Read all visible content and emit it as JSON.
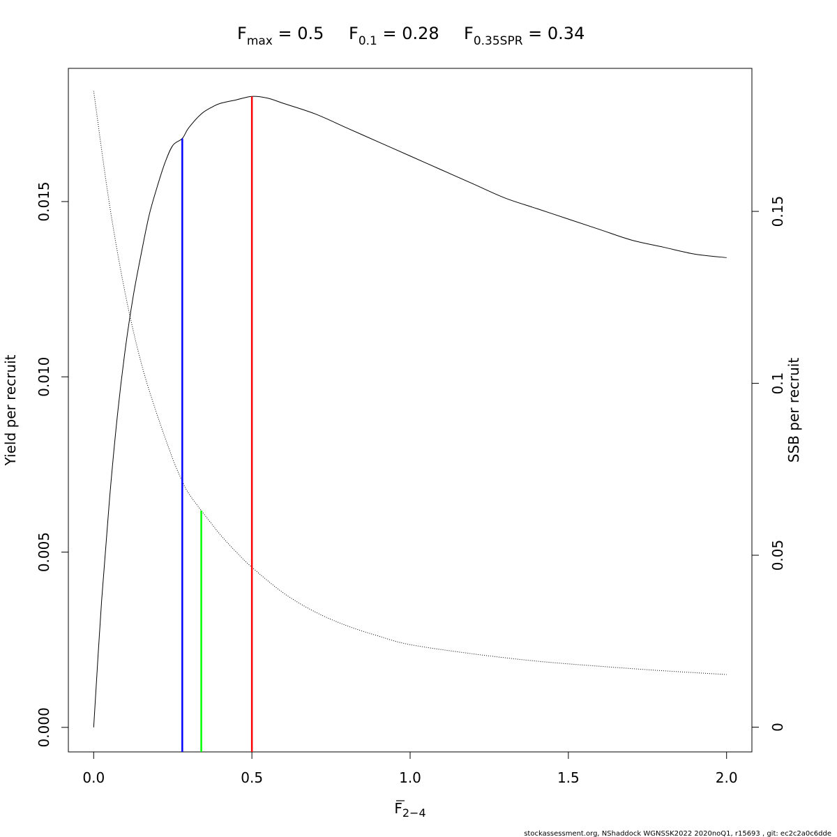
{
  "title": {
    "fmax": {
      "base": "F",
      "sub": "max",
      "rest": " = 0.5"
    },
    "f01": {
      "base": "F",
      "sub": "0.1",
      "rest": " = 0.28"
    },
    "fspr": {
      "base": "F",
      "sub": "0.35SPR",
      "rest": " = 0.34"
    }
  },
  "footer": "stockassessment.org, NShaddock  WGNSSK2022  2020noQ1, r15693 , git: ec2c2a0c6dde",
  "chart_data": {
    "type": "line",
    "xlabel": {
      "base": "F",
      "sub": "2−4"
    },
    "ylabel": "Yield per recruit",
    "y2label": "SSB per recruit",
    "xlim": [
      -0.08,
      2.08
    ],
    "ylim": [
      -0.0007,
      0.0188
    ],
    "y2lim": [
      -0.0072,
      0.1916
    ],
    "x_ticks": [
      0,
      0.5,
      1,
      1.5,
      2
    ],
    "x_tick_labels": [
      "0.0",
      "0.5",
      "1.0",
      "1.5",
      "2.0"
    ],
    "y_ticks": [
      0,
      0.005,
      0.01,
      0.015
    ],
    "y_tick_labels": [
      "0.000",
      "0.005",
      "0.010",
      "0.015"
    ],
    "y2_ticks": [
      0,
      0.05,
      0.1,
      0.15
    ],
    "y2_tick_labels": [
      "0",
      "0.05",
      "0.1",
      "0.15"
    ],
    "grid": false,
    "series": [
      {
        "axis": "left",
        "line_style": "solid",
        "color": "#000000",
        "x": [
          0,
          0.025,
          0.05,
          0.075,
          0.1,
          0.125,
          0.15,
          0.175,
          0.2,
          0.225,
          0.25,
          0.28,
          0.3,
          0.34,
          0.375,
          0.4,
          0.45,
          0.5,
          0.55,
          0.6,
          0.7,
          0.8,
          0.9,
          1.0,
          1.1,
          1.2,
          1.3,
          1.4,
          1.5,
          1.6,
          1.7,
          1.8,
          1.9,
          2.0
        ],
        "y": [
          0,
          0.0036,
          0.0065,
          0.0089,
          0.0108,
          0.0123,
          0.0135,
          0.0146,
          0.0154,
          0.0161,
          0.0166,
          0.0168,
          0.0171,
          0.0175,
          0.0177,
          0.0178,
          0.0179,
          0.018,
          0.01795,
          0.0178,
          0.0175,
          0.0171,
          0.0167,
          0.0163,
          0.0159,
          0.0155,
          0.0151,
          0.0148,
          0.0145,
          0.0142,
          0.0139,
          0.0137,
          0.0135,
          0.0134
        ]
      },
      {
        "axis": "right",
        "line_style": "dotted",
        "color": "#000000",
        "x": [
          0,
          0.05,
          0.1,
          0.15,
          0.2,
          0.25,
          0.28,
          0.3,
          0.34,
          0.4,
          0.45,
          0.5,
          0.6,
          0.7,
          0.8,
          0.9,
          1.0,
          1.2,
          1.4,
          1.6,
          1.8,
          2.0
        ],
        "y": [
          0.185,
          0.152,
          0.126,
          0.106,
          0.091,
          0.078,
          0.0715,
          0.068,
          0.063,
          0.056,
          0.051,
          0.0465,
          0.039,
          0.0335,
          0.0295,
          0.0265,
          0.024,
          0.0213,
          0.0192,
          0.0177,
          0.0164,
          0.0153
        ]
      }
    ],
    "reference_lines": [
      {
        "name": "F0.1",
        "x": 0.28,
        "y_top": 0.0168,
        "color": "#0000ff"
      },
      {
        "name": "F0.35SPR",
        "x": 0.34,
        "y2_top": 0.063,
        "color": "#00ff00"
      },
      {
        "name": "Fmax",
        "x": 0.5,
        "y_top": 0.018,
        "color": "#ff0000"
      }
    ]
  }
}
